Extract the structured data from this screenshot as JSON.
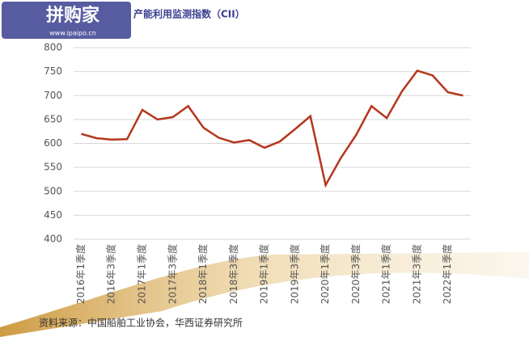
{
  "chart_data": {
    "type": "line",
    "title": "产能利用监测指数（CII）",
    "watermark": "拼购家",
    "watermark_url": "www.ipaipo.cn",
    "source": "资料来源：中国船舶工业协会，华西证券研究所",
    "categories": [
      "2016年1季度",
      null,
      "2016年3季度",
      null,
      "2017年1季度",
      null,
      "2017年3季度",
      null,
      "2018年1季度",
      null,
      "2018年3季度",
      null,
      "2019年1季度",
      null,
      "2019年3季度",
      null,
      "2020年1季度",
      null,
      "2020年3季度",
      null,
      "2021年1季度",
      null,
      "2021年3季度",
      null,
      "2022年1季度",
      null
    ],
    "series": [
      {
        "name": "CII",
        "color": "#b5361c",
        "values": [
          620,
          611,
          608,
          609,
          670,
          650,
          655,
          678,
          633,
          612,
          602,
          607,
          591,
          604,
          630,
          657,
          513,
          570,
          618,
          678,
          653,
          709,
          752,
          742,
          707,
          700
        ]
      }
    ],
    "ylim": [
      400,
      800
    ],
    "yticks": [
      400,
      450,
      500,
      550,
      600,
      650,
      700,
      750,
      800
    ],
    "grid": true
  }
}
